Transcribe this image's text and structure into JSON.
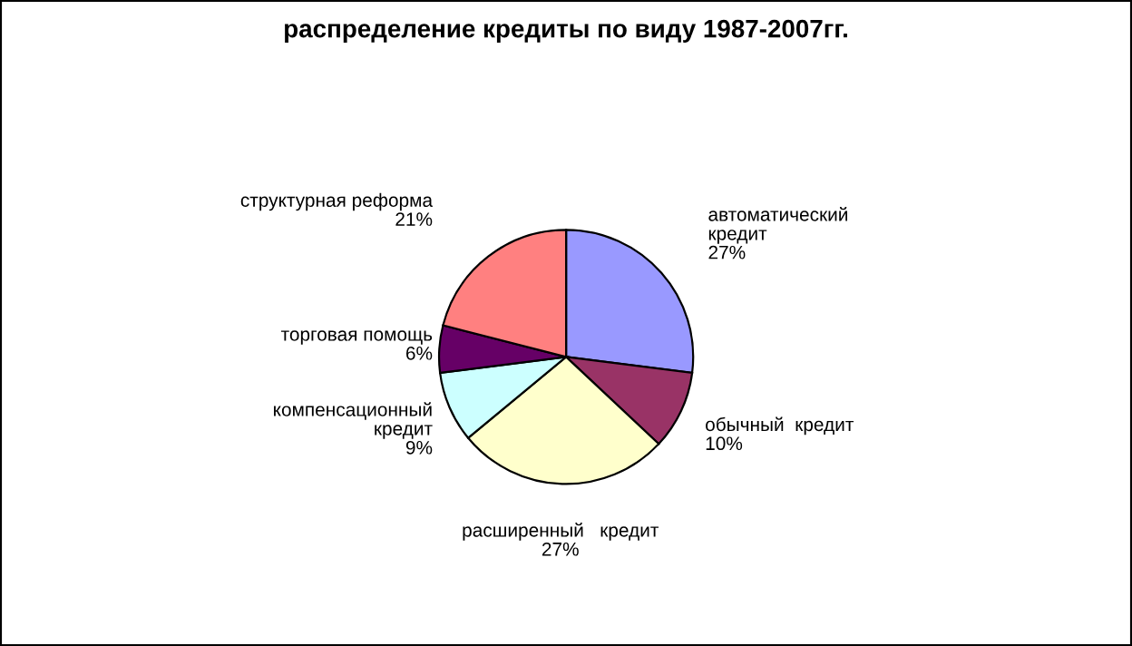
{
  "chart_data": {
    "type": "pie",
    "title": "распределение кредиты по виду 1987-2007гг.",
    "categories": [
      "автоматический\nкредит",
      "обычный  кредит",
      "расширенный   кредит",
      "компенсационный\nкредит",
      "торговая помощь",
      "структурная реформа"
    ],
    "values": [
      27,
      10,
      27,
      9,
      6,
      21
    ],
    "value_labels": [
      "27%",
      "10%",
      "27%",
      "9%",
      "6%",
      "21%"
    ],
    "colors": [
      "#9999ff",
      "#993366",
      "#ffffcc",
      "#ccffff",
      "#660066",
      "#ff8080"
    ],
    "legend": false
  }
}
